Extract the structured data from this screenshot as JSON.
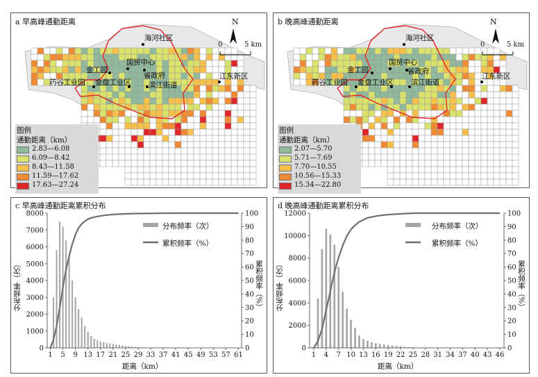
{
  "maps": [
    {
      "id": "a",
      "title": "a 早高峰通勤距离",
      "legend_title": "图例",
      "legend_subtitle": "通勤距离（km）",
      "legend_items": [
        {
          "label": "2.83—6.08",
          "color": "#8fb99a"
        },
        {
          "label": "6.09—8.42",
          "color": "#d9e36c"
        },
        {
          "label": "8.43—11.58",
          "color": "#f7c04a"
        },
        {
          "label": "11.59—17.62",
          "color": "#f08a33"
        },
        {
          "label": "17.63—27.24",
          "color": "#e0262a"
        }
      ],
      "places": [
        "海河社区",
        "国贸中心",
        "金工园",
        "省政府",
        "药谷工业园",
        "金盘工业区",
        "滨江街道",
        "江东新区"
      ]
    },
    {
      "id": "b",
      "title": "b 晚高峰通勤距离",
      "legend_title": "图例",
      "legend_subtitle": "通勤距离（km）",
      "legend_items": [
        {
          "label": "2.07—5.70",
          "color": "#8fb99a"
        },
        {
          "label": "5.71—7.69",
          "color": "#d9e36c"
        },
        {
          "label": "7.70—10.55",
          "color": "#f7c04a"
        },
        {
          "label": "10.56—15.33",
          "color": "#f08a33"
        },
        {
          "label": "15.34—22.80",
          "color": "#e0262a"
        }
      ],
      "places": [
        "海河社区",
        "国贸中心",
        "金工园",
        "省政府",
        "药谷工业园",
        "金盘工业区",
        "滨江街道",
        "江东新区"
      ]
    }
  ],
  "north_label": "N",
  "scale": {
    "zero": "0",
    "five": "5 km"
  },
  "chart_data": [
    {
      "type": "bar",
      "title": "c 早高峰通勤距离累积分布",
      "xlabel": "距离（km）",
      "ylabel": "分布频率（次）",
      "ylabel2": "累积频率（%）",
      "ylim": [
        0,
        8000
      ],
      "y2lim": [
        0,
        100
      ],
      "yticks": [
        0,
        1000,
        2000,
        3000,
        4000,
        5000,
        6000,
        7000,
        8000
      ],
      "y2ticks": [
        0,
        10,
        20,
        30,
        40,
        50,
        60,
        70,
        80,
        90,
        100
      ],
      "xlim": [
        0,
        62
      ],
      "xticks": [
        "1",
        "5",
        "9",
        "13",
        "17",
        "21",
        "25",
        "29",
        "33",
        "37",
        "41",
        "45",
        "49",
        "53",
        "57",
        "61"
      ],
      "series": [
        {
          "name": "分布频率（次）",
          "x": [
            2,
            3,
            4,
            5,
            6,
            7,
            8,
            9,
            10,
            11,
            12,
            13,
            14,
            15,
            16,
            17,
            18,
            19,
            20,
            21,
            22,
            23,
            24,
            25,
            26,
            27,
            28,
            29,
            30
          ],
          "values": [
            3000,
            5800,
            7500,
            7200,
            6400,
            5600,
            4000,
            3000,
            2300,
            1800,
            1300,
            950,
            700,
            550,
            450,
            380,
            330,
            290,
            260,
            230,
            200,
            180,
            150,
            120,
            100,
            80,
            60,
            40,
            30
          ]
        },
        {
          "name": "累积频率（%）",
          "x": [
            1,
            2,
            3,
            4,
            5,
            6,
            7,
            8,
            9,
            10,
            11,
            12,
            13,
            14,
            16,
            18,
            20,
            22,
            25,
            28,
            32,
            36,
            40,
            45,
            50,
            55,
            61
          ],
          "values": [
            0,
            6,
            16,
            30,
            45,
            58,
            68,
            77,
            84,
            89,
            92,
            94,
            95.5,
            96.5,
            97.5,
            98.3,
            98.8,
            99.2,
            99.5,
            99.7,
            99.8,
            99.9,
            100,
            100,
            100,
            100,
            100
          ]
        }
      ]
    },
    {
      "type": "bar",
      "title": "d 晚高峰通勤距离累积分布",
      "xlabel": "距离（km）",
      "ylabel": "分布频率（次）",
      "ylabel2": "累积频率（%）",
      "ylim": [
        0,
        12000
      ],
      "y2lim": [
        0,
        100
      ],
      "yticks": [
        0,
        2000,
        4000,
        6000,
        8000,
        10000,
        12000
      ],
      "y2ticks": [
        0,
        10,
        20,
        30,
        40,
        50,
        60,
        70,
        80,
        90,
        100
      ],
      "xlim": [
        0,
        47
      ],
      "xticks": [
        "1",
        "4",
        "7",
        "10",
        "13",
        "16",
        "19",
        "22",
        "25",
        "28",
        "31",
        "34",
        "37",
        "40",
        "43",
        "46"
      ],
      "series": [
        {
          "name": "分布频率（次）",
          "x": [
            2,
            3,
            4,
            5,
            6,
            7,
            8,
            9,
            10,
            11,
            12,
            13,
            14,
            15,
            16,
            17,
            18,
            19,
            20,
            21,
            22,
            23,
            24,
            25
          ],
          "values": [
            4400,
            8800,
            10600,
            10100,
            9200,
            7200,
            5000,
            3500,
            2500,
            1800,
            1100,
            800,
            650,
            500,
            420,
            350,
            300,
            250,
            200,
            160,
            130,
            100,
            70,
            40
          ]
        },
        {
          "name": "累积频率（%）",
          "x": [
            1,
            2,
            3,
            4,
            5,
            6,
            7,
            8,
            9,
            10,
            11,
            12,
            13,
            14,
            16,
            18,
            20,
            22,
            24,
            26,
            30,
            35,
            40,
            46
          ],
          "values": [
            0,
            5,
            14,
            28,
            42,
            56,
            67,
            76,
            83,
            88,
            91,
            93.5,
            95,
            96.5,
            97.8,
            98.6,
            99.1,
            99.5,
            99.8,
            100,
            100,
            100,
            100,
            100
          ]
        }
      ]
    }
  ],
  "colors": {
    "bar": "#a6a6a6",
    "line": "#6e6e6e",
    "boundary": "#e0262a",
    "grid": "#9a9a9a",
    "land": "#e8e8e8"
  }
}
